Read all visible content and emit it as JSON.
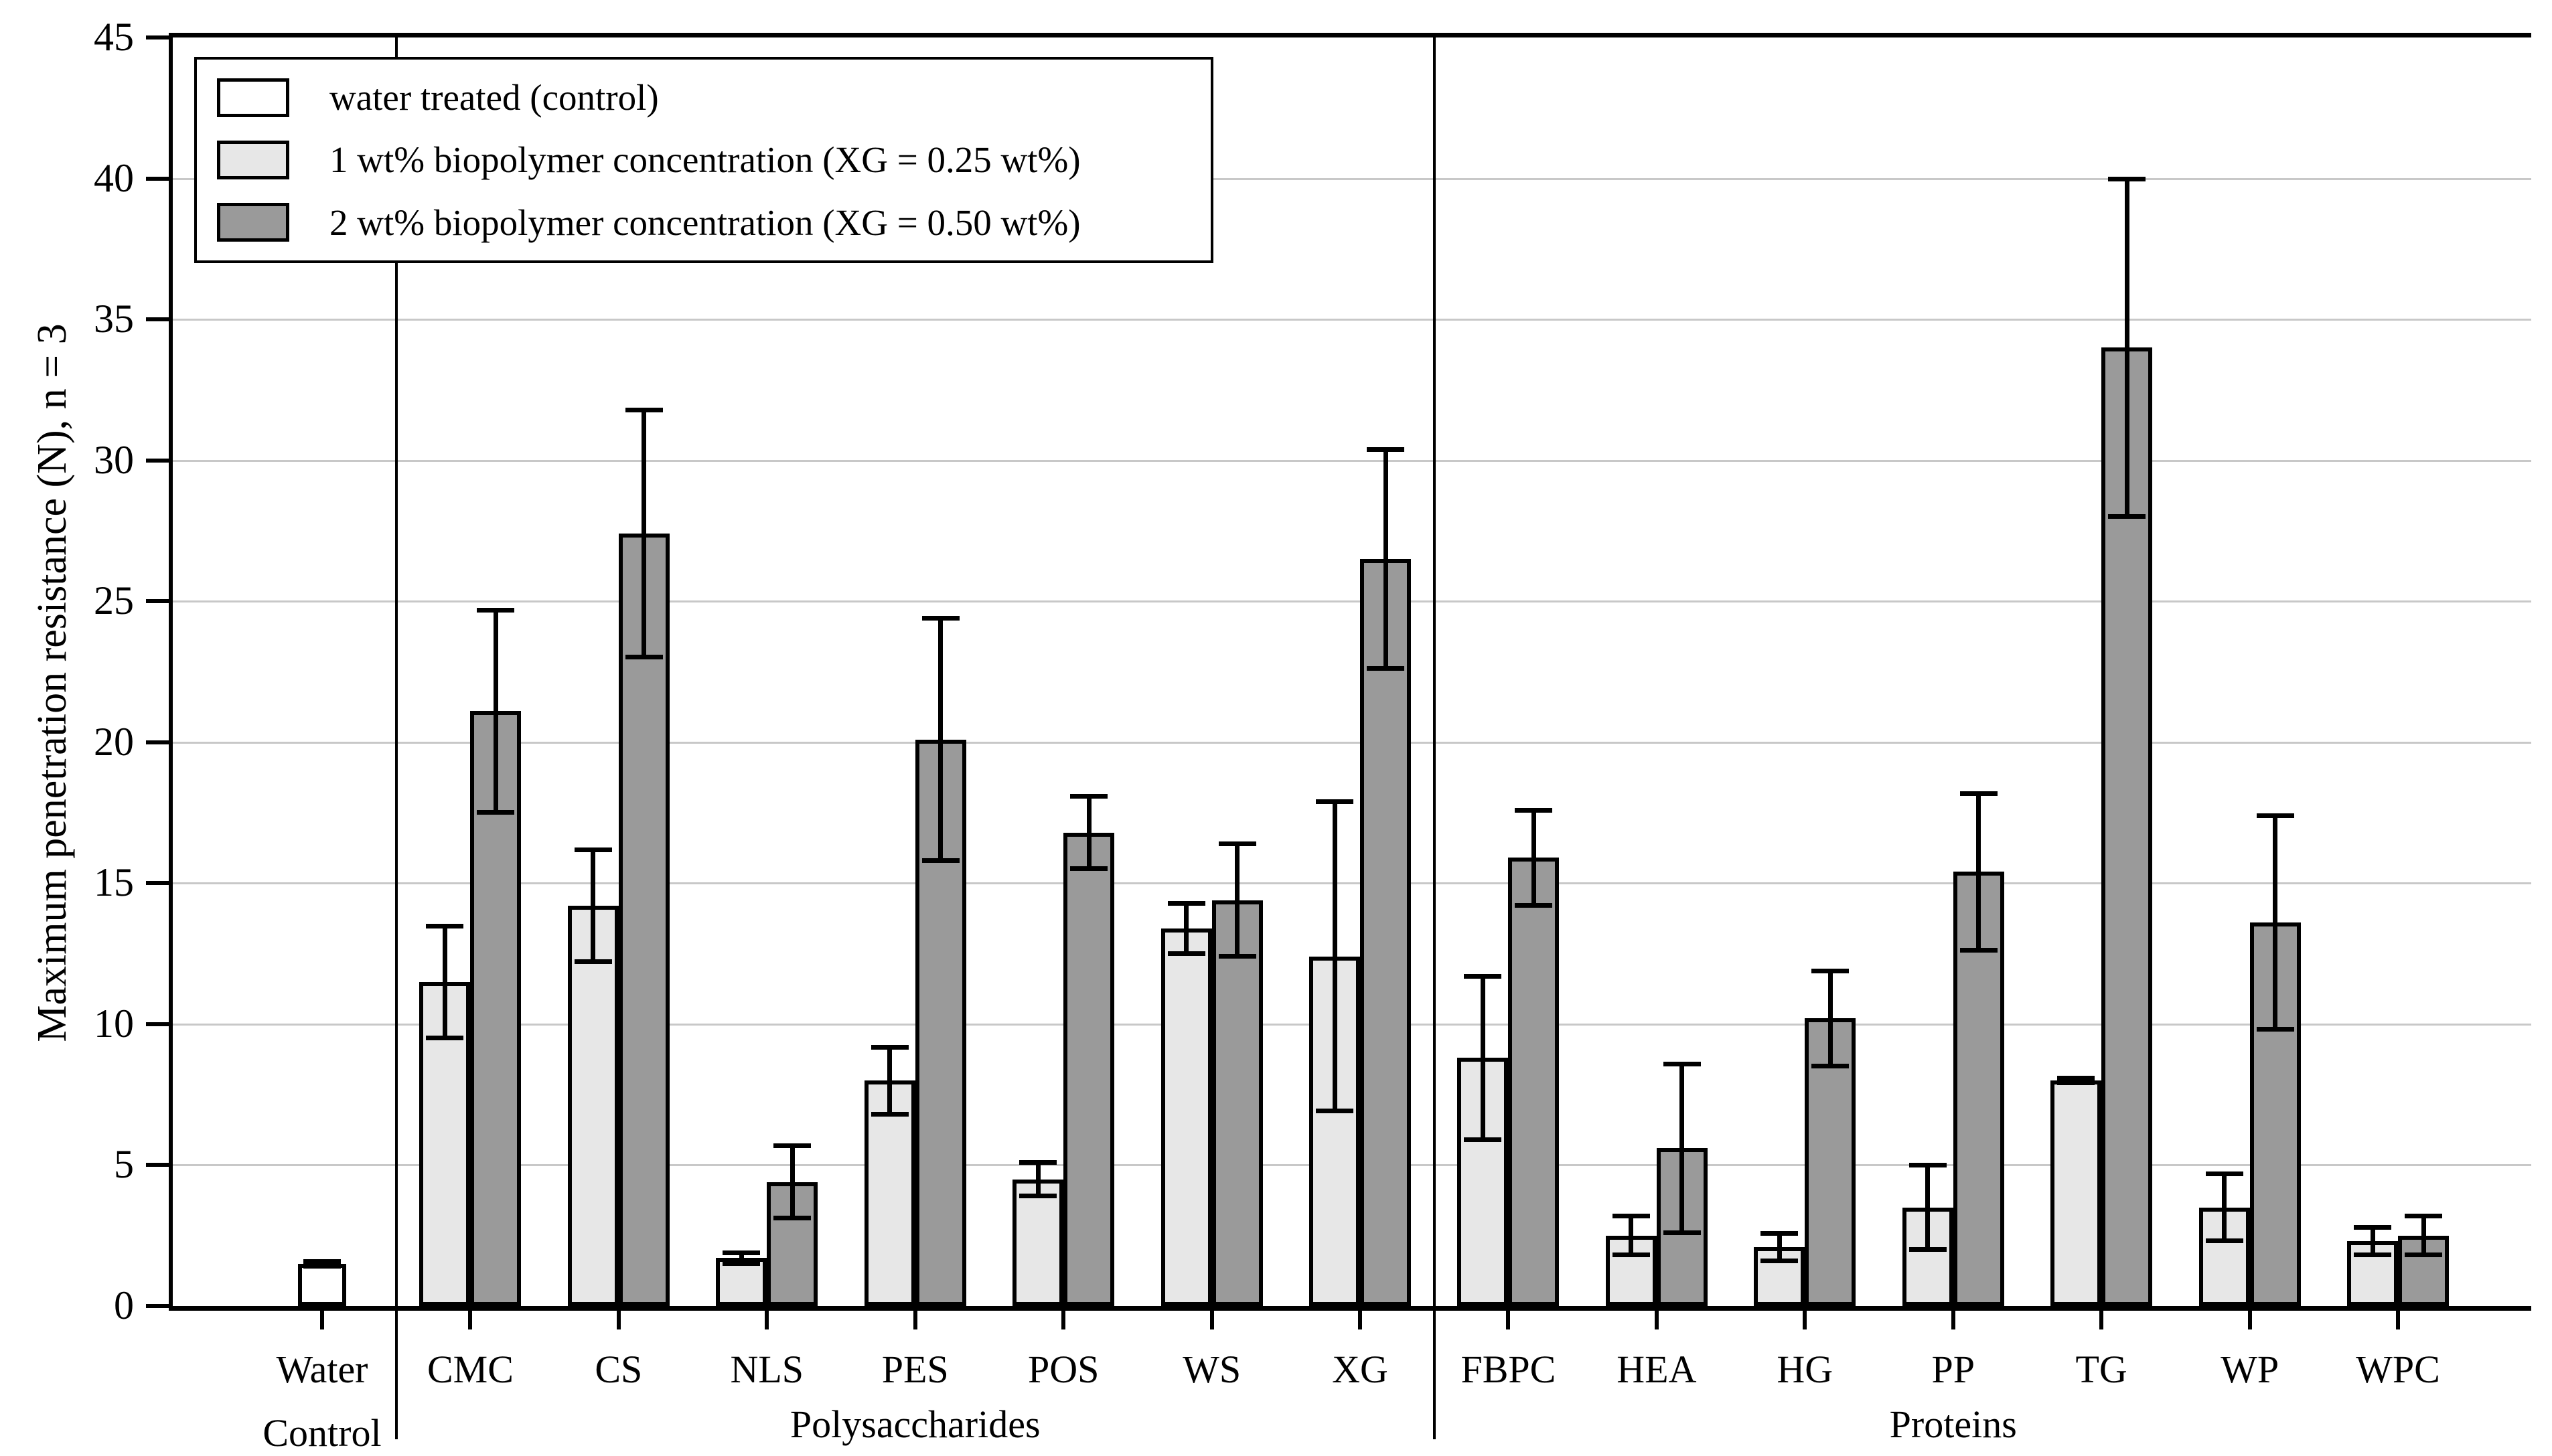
{
  "chart_data": {
    "type": "bar",
    "title": "",
    "xlabel": "",
    "ylabel": "Maximum penetration resistance (N), n = 3",
    "ylim": [
      0,
      45
    ],
    "ytick_step": 5,
    "grid": "horizontal",
    "legend_position": "top-left",
    "error_bars": true,
    "series_legend": [
      {
        "id": "control",
        "label": "water treated (control)",
        "color": "#ffffff"
      },
      {
        "id": "c1",
        "label": "1 wt% biopolymer concentration (XG = 0.25 wt%)",
        "color": "#e7e7e7"
      },
      {
        "id": "c2",
        "label": "2 wt% biopolymer concentration (XG = 0.50 wt%)",
        "color": "#9a9a9a"
      }
    ],
    "sections": [
      "Polysaccharides",
      "Proteins"
    ],
    "groups": [
      {
        "label": "Water\nControl",
        "section": "",
        "bars": [
          {
            "series": "control",
            "value": 1.5,
            "error": 0.1
          }
        ]
      },
      {
        "label": "CMC",
        "section": "Polysaccharides",
        "bars": [
          {
            "series": "c1",
            "value": 11.5,
            "error": 2.0
          },
          {
            "series": "c2",
            "value": 21.1,
            "error": 3.6
          }
        ]
      },
      {
        "label": "CS",
        "section": "Polysaccharides",
        "bars": [
          {
            "series": "c1",
            "value": 14.2,
            "error": 2.0
          },
          {
            "series": "c2",
            "value": 27.4,
            "error": 4.4
          }
        ]
      },
      {
        "label": "NLS",
        "section": "Polysaccharides",
        "bars": [
          {
            "series": "c1",
            "value": 1.7,
            "error": 0.2
          },
          {
            "series": "c2",
            "value": 4.4,
            "error": 1.3
          }
        ]
      },
      {
        "label": "PES",
        "section": "Polysaccharides",
        "bars": [
          {
            "series": "c1",
            "value": 8.0,
            "error": 1.2
          },
          {
            "series": "c2",
            "value": 20.1,
            "error": 4.3
          }
        ]
      },
      {
        "label": "POS",
        "section": "Polysaccharides",
        "bars": [
          {
            "series": "c1",
            "value": 4.5,
            "error": 0.6
          },
          {
            "series": "c2",
            "value": 16.8,
            "error": 1.3
          }
        ]
      },
      {
        "label": "WS",
        "section": "Polysaccharides",
        "bars": [
          {
            "series": "c1",
            "value": 13.4,
            "error": 0.9
          },
          {
            "series": "c2",
            "value": 14.4,
            "error": 2.0
          }
        ]
      },
      {
        "label": "XG",
        "section": "Polysaccharides",
        "bars": [
          {
            "series": "c1",
            "value": 12.4,
            "error": 5.5
          },
          {
            "series": "c2",
            "value": 26.5,
            "error": 3.9
          }
        ]
      },
      {
        "label": "FBPC",
        "section": "Proteins",
        "bars": [
          {
            "series": "c1",
            "value": 8.8,
            "error": 2.9
          },
          {
            "series": "c2",
            "value": 15.9,
            "error": 1.7
          }
        ]
      },
      {
        "label": "HEA",
        "section": "Proteins",
        "bars": [
          {
            "series": "c1",
            "value": 2.5,
            "error": 0.7
          },
          {
            "series": "c2",
            "value": 5.6,
            "error": 3.0
          }
        ]
      },
      {
        "label": "HG",
        "section": "Proteins",
        "bars": [
          {
            "series": "c1",
            "value": 2.1,
            "error": 0.5
          },
          {
            "series": "c2",
            "value": 10.2,
            "error": 1.7
          }
        ]
      },
      {
        "label": "PP",
        "section": "Proteins",
        "bars": [
          {
            "series": "c1",
            "value": 3.5,
            "error": 1.5
          },
          {
            "series": "c2",
            "value": 15.4,
            "error": 2.8
          }
        ]
      },
      {
        "label": "TG",
        "section": "Proteins",
        "bars": [
          {
            "series": "c1",
            "value": 8.0,
            "error": 0.1
          },
          {
            "series": "c2",
            "value": 34.0,
            "error": 6.0
          }
        ]
      },
      {
        "label": "WP",
        "section": "Proteins",
        "bars": [
          {
            "series": "c1",
            "value": 3.5,
            "error": 1.2
          },
          {
            "series": "c2",
            "value": 13.6,
            "error": 3.8
          }
        ]
      },
      {
        "label": "WPC",
        "section": "Proteins",
        "bars": [
          {
            "series": "c1",
            "value": 2.3,
            "error": 0.5
          },
          {
            "series": "c2",
            "value": 2.5,
            "error": 0.7
          }
        ]
      }
    ],
    "colors": {
      "axis": "#000000",
      "gridline": "#c8c8c8",
      "bar_border": "#000000",
      "background": "#ffffff"
    }
  }
}
